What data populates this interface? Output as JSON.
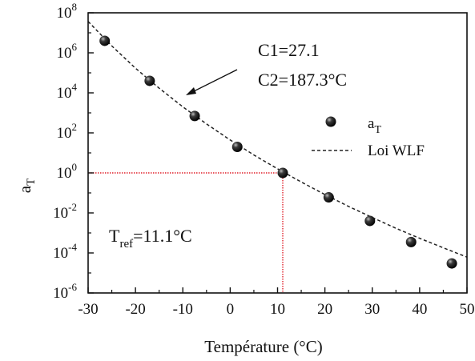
{
  "chart_data": {
    "type": "scatter",
    "title": "",
    "xlabel": "Température (°C)",
    "ylabel": "a_T",
    "ylabel_main": "a",
    "ylabel_sub": "T",
    "xlim": [
      -30,
      50
    ],
    "ylim_exponent": [
      -6,
      8
    ],
    "y_scale": "log",
    "grid": false,
    "x_ticks": [
      -30,
      -20,
      -10,
      0,
      10,
      20,
      30,
      40,
      50
    ],
    "x_tick_labels": [
      "-30",
      "-20",
      "-10",
      "0",
      "10",
      "20",
      "30",
      "40",
      "50"
    ],
    "y_tick_exponents": [
      -6,
      -4,
      -2,
      0,
      2,
      4,
      6,
      8
    ],
    "y_tick_base": "10",
    "y_tick_exp_labels": [
      "-6",
      "-4",
      "-2",
      "0",
      "2",
      "4",
      "6",
      "8"
    ],
    "series": [
      {
        "name": "a_T",
        "kind": "points",
        "x": [
          -26.5,
          -17,
          -7.5,
          1.5,
          11.1,
          20.8,
          29.5,
          38.2,
          46.8
        ],
        "y": [
          4000000.0,
          40000.0,
          700.0,
          20.0,
          1.0,
          0.06,
          0.004,
          0.00035,
          3e-05
        ]
      },
      {
        "name": "Loi WLF",
        "kind": "dashed-line",
        "x": [
          -30,
          -25,
          -20,
          -15,
          -10,
          -5,
          0,
          5,
          10,
          15,
          20,
          25,
          30,
          35,
          40,
          45,
          50
        ],
        "y": [
          37000000.0,
          2200000.0,
          170000.0,
          17000.0,
          2000.0,
          280.0,
          44.0,
          7.9,
          1.6,
          0.35,
          0.083,
          0.021,
          0.0059,
          0.0017,
          0.00054,
          0.00018,
          6.2e-05
        ]
      }
    ],
    "reference": {
      "x": 11.1,
      "y": 1.0
    },
    "annotations": {
      "c1": "C1=27.1",
      "c2": "C2=187.3°C",
      "tref_main": "T",
      "tref_sub": "ref",
      "tref_value": "=11.1°C"
    },
    "legend": {
      "placement": "right",
      "point_label_main": "a",
      "point_label_sub": "T",
      "line_label": "Loi WLF"
    },
    "colors": {
      "axis": "#111111",
      "marker": "#111111",
      "curve": "#222222",
      "reference": "#e0212b"
    }
  }
}
